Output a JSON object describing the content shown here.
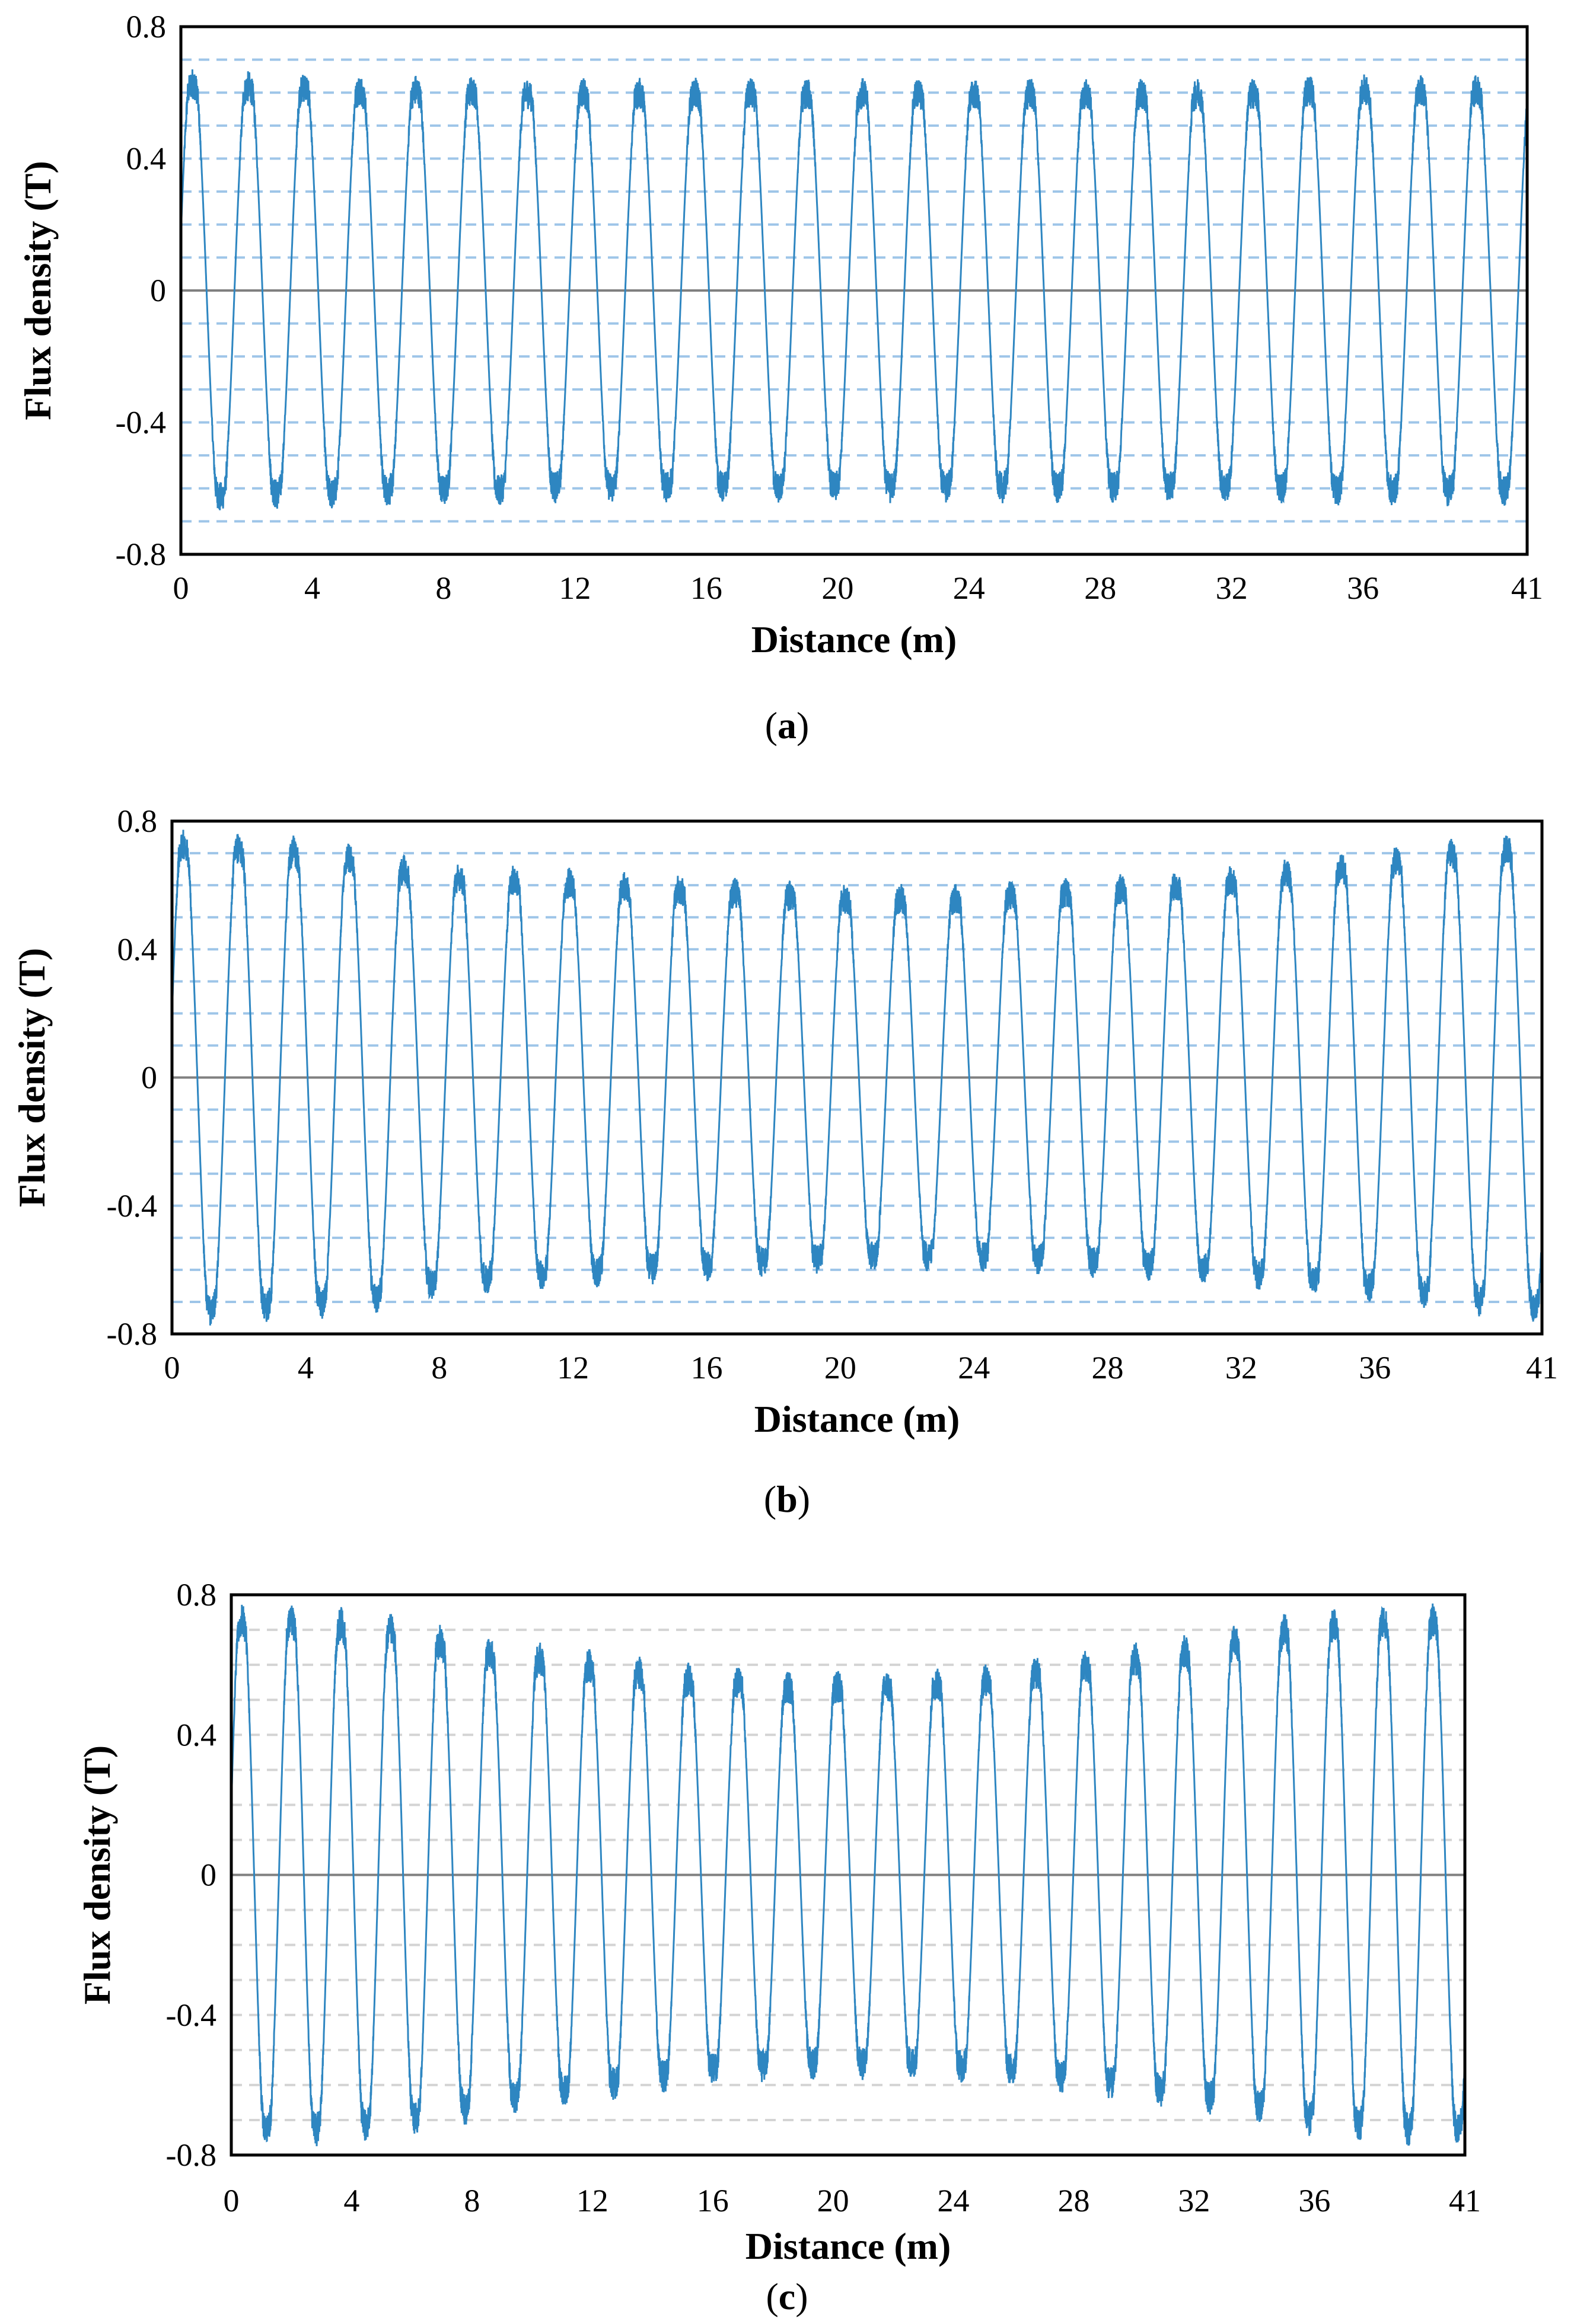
{
  "figure": {
    "panels": [
      {
        "id": "a",
        "caption": "(a)",
        "caption_letter": "a"
      },
      {
        "id": "b",
        "caption": "(b)",
        "caption_letter": "b"
      },
      {
        "id": "c",
        "caption": "(c)",
        "caption_letter": "c"
      }
    ]
  },
  "chart_data": [
    {
      "panel": "a",
      "type": "line",
      "title": "",
      "xlabel": "Distance (m)",
      "ylabel": "Flux density (T)",
      "xlim": [
        0,
        41
      ],
      "ylim": [
        -0.8,
        0.8
      ],
      "xticks": [
        "0",
        "4",
        "8",
        "12",
        "16",
        "20",
        "24",
        "28",
        "32",
        "36",
        "41"
      ],
      "xtick_values": [
        0,
        4,
        8,
        12,
        16,
        20,
        24,
        28,
        32,
        36,
        41
      ],
      "yticks": [
        "0.8",
        "0.4",
        "0",
        "-0.4",
        "-0.8"
      ],
      "ytick_values": [
        0.8,
        0.4,
        0,
        -0.4,
        -0.8
      ],
      "minor_gridlines": [
        0.7,
        0.6,
        0.5,
        0.3,
        0.2,
        0.1,
        -0.1,
        -0.2,
        -0.3,
        -0.5,
        -0.6,
        -0.7
      ],
      "grid": "dashed horizontal",
      "series": [
        {
          "name": "Flux density",
          "color": "#2e86c1",
          "period_m": 1.7,
          "peak_amplitude_T": [
            0.7,
            0.69,
            0.69,
            0.68,
            0.68,
            0.68,
            0.67,
            0.67,
            0.67,
            0.67,
            0.67,
            0.67,
            0.67,
            0.67,
            0.67,
            0.67,
            0.67,
            0.67,
            0.67,
            0.67,
            0.68,
            0.68,
            0.68,
            0.68,
            0.69
          ],
          "ripple_level_T": 0.5
        }
      ]
    },
    {
      "panel": "b",
      "type": "line",
      "title": "",
      "xlabel": "Distance (m)",
      "ylabel": "Flux density (T)",
      "xlim": [
        0,
        41
      ],
      "ylim": [
        -0.8,
        0.8
      ],
      "xticks": [
        "0",
        "4",
        "8",
        "12",
        "16",
        "20",
        "24",
        "28",
        "32",
        "36",
        "41"
      ],
      "xtick_values": [
        0,
        4,
        8,
        12,
        16,
        20,
        24,
        28,
        32,
        36,
        41
      ],
      "yticks": [
        "0.8",
        "0.4",
        "0",
        "-0.4",
        "-0.8"
      ],
      "ytick_values": [
        0.8,
        0.4,
        0,
        -0.4,
        -0.8
      ],
      "minor_gridlines": [
        0.7,
        0.6,
        0.5,
        0.3,
        0.2,
        0.1,
        -0.1,
        -0.2,
        -0.3,
        -0.5,
        -0.6,
        -0.7
      ],
      "grid": "dashed horizontal",
      "series": [
        {
          "name": "Flux density",
          "color": "#2e86c1",
          "period_m": 1.65,
          "peak_amplitude_T": [
            0.8,
            0.79,
            0.78,
            0.76,
            0.72,
            0.7,
            0.69,
            0.68,
            0.67,
            0.66,
            0.65,
            0.64,
            0.63,
            0.63,
            0.63,
            0.64,
            0.65,
            0.66,
            0.67,
            0.69,
            0.71,
            0.73,
            0.75,
            0.77,
            0.79
          ],
          "ripple_level_T": 0.5
        }
      ]
    },
    {
      "panel": "c",
      "type": "line",
      "title": "",
      "xlabel": "Distance (m)",
      "ylabel": "Flux density (T)",
      "xlim": [
        0,
        41
      ],
      "ylim": [
        -0.8,
        0.8
      ],
      "xticks": [
        "0",
        "4",
        "8",
        "12",
        "16",
        "20",
        "24",
        "28",
        "32",
        "36",
        "41"
      ],
      "xtick_values": [
        0,
        4,
        8,
        12,
        16,
        20,
        24,
        28,
        32,
        36,
        41
      ],
      "yticks": [
        "0.8",
        "0.4",
        "0",
        "-0.4",
        "-0.8"
      ],
      "ytick_values": [
        0.8,
        0.4,
        0,
        -0.4,
        -0.8
      ],
      "minor_gridlines": [
        0.7,
        0.6,
        0.5,
        0.3,
        0.2,
        0.1,
        -0.1,
        -0.2,
        -0.3,
        -0.5,
        -0.6,
        -0.7
      ],
      "grid": "dashed horizontal",
      "series": [
        {
          "name": "Flux density",
          "color": "#2e86c1",
          "period_m": 1.65,
          "peak_amplitude_T": [
            0.8,
            0.8,
            0.79,
            0.77,
            0.74,
            0.71,
            0.69,
            0.67,
            0.65,
            0.63,
            0.62,
            0.61,
            0.61,
            0.61,
            0.62,
            0.63,
            0.65,
            0.67,
            0.69,
            0.71,
            0.74,
            0.77,
            0.79,
            0.8,
            0.8
          ],
          "ripple_level_T": 0.5
        }
      ]
    }
  ]
}
